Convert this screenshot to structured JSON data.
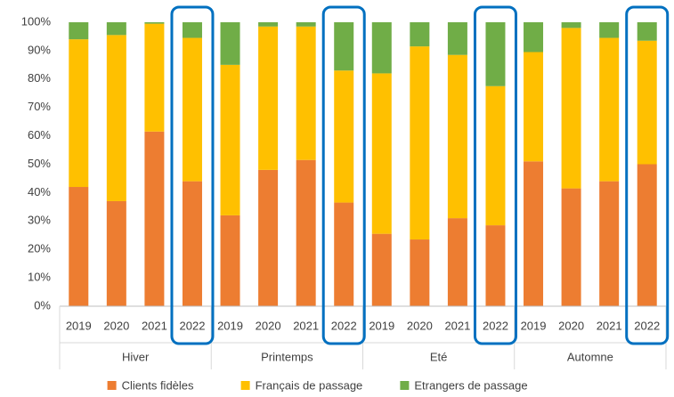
{
  "chart_data": {
    "type": "stacked_bar",
    "categories": [
      "2019",
      "2020",
      "2021",
      "2022",
      "2019",
      "2020",
      "2021",
      "2022",
      "2019",
      "2020",
      "2021",
      "2022",
      "2019",
      "2020",
      "2021",
      "2022"
    ],
    "groups": [
      "Hiver",
      "Printemps",
      "Eté",
      "Automne"
    ],
    "series": [
      {
        "name": "Clients fidèles",
        "color": "#ed7d31",
        "values": [
          42,
          37,
          61.5,
          44,
          32,
          48,
          51.5,
          36.5,
          25.5,
          23.5,
          31,
          28.5,
          51,
          41.5,
          44,
          50
        ]
      },
      {
        "name": "Français de passage",
        "color": "#ffc000",
        "values": [
          52,
          58.5,
          38,
          50.5,
          53,
          50.5,
          47,
          46.5,
          56.5,
          68,
          57.5,
          49,
          38.5,
          56.5,
          50.5,
          43.5
        ]
      },
      {
        "name": "Etrangers de passage",
        "color": "#70ad47",
        "values": [
          6,
          4.5,
          0.5,
          5.5,
          15,
          1.5,
          1.5,
          17,
          18,
          8.5,
          11.5,
          22.5,
          10.5,
          2,
          5.5,
          6.5
        ]
      }
    ],
    "ylim": [
      0,
      100
    ],
    "yticks": [
      {
        "value": 0,
        "label": "0%"
      },
      {
        "value": 10,
        "label": "10%"
      },
      {
        "value": 20,
        "label": "20%"
      },
      {
        "value": 30,
        "label": "30%"
      },
      {
        "value": 40,
        "label": "40%"
      },
      {
        "value": 50,
        "label": "50%"
      },
      {
        "value": 60,
        "label": "60%"
      },
      {
        "value": 70,
        "label": "70%"
      },
      {
        "value": 80,
        "label": "80%"
      },
      {
        "value": 90,
        "label": "90%"
      },
      {
        "value": 100,
        "label": "100%"
      }
    ],
    "grid": false,
    "legend": "bottom"
  }
}
